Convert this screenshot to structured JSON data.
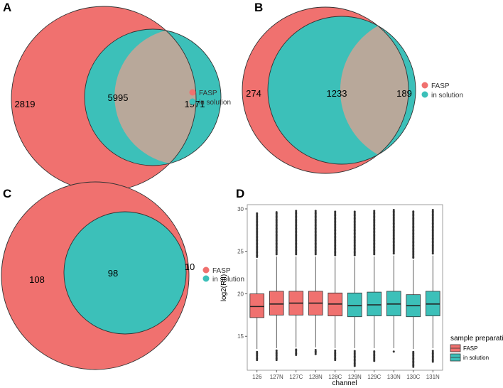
{
  "colors": {
    "fasp": "#F0716F",
    "solution": "#3CC0B9",
    "overlap": "#B8A89A",
    "outline": "#333333",
    "outlier": "#333333",
    "panel_border": "#888888"
  },
  "panel_labels": [
    "A",
    "B",
    "C",
    "D"
  ],
  "chart_data": [
    {
      "type": "venn",
      "panel": "A",
      "sets": [
        "FASP",
        "in solution"
      ],
      "only_a": 2819,
      "intersection": 5995,
      "only_b": 1971,
      "legend": [
        "FASP",
        "in solution"
      ]
    },
    {
      "type": "venn",
      "panel": "B",
      "sets": [
        "FASP",
        "in solution"
      ],
      "only_a": 274,
      "intersection": 1233,
      "only_b": 189,
      "legend": [
        "FASP",
        "in solution"
      ]
    },
    {
      "type": "venn",
      "panel": "C",
      "sets": [
        "FASP",
        "in solution"
      ],
      "only_a": 108,
      "intersection": 98,
      "only_b": 10,
      "legend": [
        "FASP",
        "in solution"
      ]
    },
    {
      "type": "boxplot",
      "panel": "D",
      "xlabel": "channel",
      "ylabel": "log2(RII)",
      "ylim": [
        11,
        30.5
      ],
      "yticks": [
        15,
        20,
        25,
        30
      ],
      "legend_title": "sample preparation",
      "legend": [
        "FASP",
        "in solution"
      ],
      "categories": [
        "126",
        "127N",
        "127C",
        "128N",
        "128C",
        "129N",
        "129C",
        "130N",
        "130C",
        "131N"
      ],
      "groups": [
        "FASP",
        "FASP",
        "FASP",
        "FASP",
        "FASP",
        "in solution",
        "in solution",
        "in solution",
        "in solution",
        "in solution"
      ],
      "boxes": [
        {
          "min": 13.5,
          "q1": 17.2,
          "median": 18.5,
          "q3": 20.0,
          "max": 24.1,
          "out_low": 12.2,
          "out_high": 29.6
        },
        {
          "min": 13.6,
          "q1": 17.5,
          "median": 18.8,
          "q3": 20.3,
          "max": 24.4,
          "out_low": 12.2,
          "out_high": 29.7
        },
        {
          "min": 13.7,
          "q1": 17.5,
          "median": 18.9,
          "q3": 20.3,
          "max": 24.4,
          "out_low": 12.8,
          "out_high": 29.9
        },
        {
          "min": 13.7,
          "q1": 17.5,
          "median": 18.9,
          "q3": 20.3,
          "max": 24.4,
          "out_low": 12.9,
          "out_high": 29.9
        },
        {
          "min": 13.6,
          "q1": 17.4,
          "median": 18.8,
          "q3": 20.1,
          "max": 24.3,
          "out_low": 12.2,
          "out_high": 29.7
        },
        {
          "min": 13.6,
          "q1": 17.3,
          "median": 18.6,
          "q3": 20.1,
          "max": 24.3,
          "out_low": 11.5,
          "out_high": 29.8
        },
        {
          "min": 13.6,
          "q1": 17.4,
          "median": 18.7,
          "q3": 20.2,
          "max": 24.4,
          "out_low": 12.1,
          "out_high": 29.8
        },
        {
          "min": 13.6,
          "q1": 17.4,
          "median": 18.8,
          "q3": 20.3,
          "max": 24.5,
          "out_low": 13.2,
          "out_high": 29.9
        },
        {
          "min": 13.5,
          "q1": 17.3,
          "median": 18.6,
          "q3": 19.9,
          "max": 24.0,
          "out_low": 11.4,
          "out_high": 29.8
        },
        {
          "min": 13.6,
          "q1": 17.4,
          "median": 18.8,
          "q3": 20.3,
          "max": 24.5,
          "out_low": 12.0,
          "out_high": 29.9
        }
      ]
    }
  ]
}
